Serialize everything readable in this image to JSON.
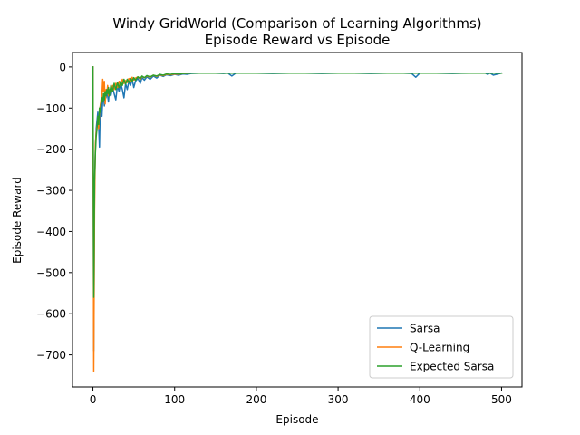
{
  "chart_data": {
    "type": "line",
    "title": "Windy GridWorld (Comparison of Learning Algorithms)",
    "subtitle": "Episode Reward vs Episode",
    "xlabel": "Episode",
    "ylabel": "Episode Reward",
    "xlim": [
      -25,
      525
    ],
    "ylim": [
      -778,
      35
    ],
    "xticks": [
      0,
      100,
      200,
      300,
      400,
      500
    ],
    "yticks": [
      0,
      -100,
      -200,
      -300,
      -400,
      -500,
      -600,
      -700
    ],
    "grid": false,
    "legend_position": "lower-right",
    "series": [
      {
        "name": "Sarsa",
        "color": "#1f77b4",
        "points": [
          [
            0,
            0
          ],
          [
            1,
            -690
          ],
          [
            2,
            -300
          ],
          [
            3,
            -200
          ],
          [
            4,
            -150
          ],
          [
            5,
            -130
          ],
          [
            6,
            -110
          ],
          [
            7,
            -140
          ],
          [
            8,
            -195
          ],
          [
            9,
            -95
          ],
          [
            10,
            -85
          ],
          [
            11,
            -120
          ],
          [
            12,
            -80
          ],
          [
            13,
            -70
          ],
          [
            14,
            -95
          ],
          [
            15,
            -65
          ],
          [
            16,
            -75
          ],
          [
            17,
            -60
          ],
          [
            18,
            -70
          ],
          [
            19,
            -85
          ],
          [
            20,
            -60
          ],
          [
            22,
            -70
          ],
          [
            24,
            -50
          ],
          [
            26,
            -65
          ],
          [
            28,
            -80
          ],
          [
            30,
            -45
          ],
          [
            32,
            -60
          ],
          [
            34,
            -40
          ],
          [
            36,
            -55
          ],
          [
            38,
            -75
          ],
          [
            40,
            -40
          ],
          [
            42,
            -55
          ],
          [
            44,
            -35
          ],
          [
            46,
            -45
          ],
          [
            48,
            -30
          ],
          [
            50,
            -50
          ],
          [
            52,
            -35
          ],
          [
            55,
            -28
          ],
          [
            58,
            -40
          ],
          [
            60,
            -26
          ],
          [
            63,
            -32
          ],
          [
            66,
            -24
          ],
          [
            70,
            -30
          ],
          [
            74,
            -22
          ],
          [
            78,
            -27
          ],
          [
            82,
            -20
          ],
          [
            86,
            -23
          ],
          [
            90,
            -19
          ],
          [
            95,
            -21
          ],
          [
            100,
            -18
          ],
          [
            105,
            -20
          ],
          [
            110,
            -17
          ],
          [
            115,
            -18
          ],
          [
            120,
            -16
          ],
          [
            130,
            -15
          ],
          [
            140,
            -15
          ],
          [
            150,
            -15
          ],
          [
            160,
            -16
          ],
          [
            165,
            -15
          ],
          [
            170,
            -22
          ],
          [
            175,
            -15
          ],
          [
            180,
            -15
          ],
          [
            200,
            -15
          ],
          [
            220,
            -16
          ],
          [
            240,
            -15
          ],
          [
            260,
            -15
          ],
          [
            280,
            -16
          ],
          [
            300,
            -15
          ],
          [
            320,
            -15
          ],
          [
            340,
            -16
          ],
          [
            360,
            -15
          ],
          [
            380,
            -15
          ],
          [
            390,
            -16
          ],
          [
            395,
            -25
          ],
          [
            400,
            -15
          ],
          [
            420,
            -15
          ],
          [
            440,
            -16
          ],
          [
            460,
            -15
          ],
          [
            480,
            -15
          ],
          [
            483,
            -18
          ],
          [
            486,
            -15
          ],
          [
            490,
            -20
          ],
          [
            500,
            -15
          ]
        ]
      },
      {
        "name": "Q-Learning",
        "color": "#ff7f0e",
        "points": [
          [
            0,
            0
          ],
          [
            1,
            -740
          ],
          [
            2,
            -350
          ],
          [
            3,
            -190
          ],
          [
            4,
            -160
          ],
          [
            5,
            -145
          ],
          [
            6,
            -130
          ],
          [
            7,
            -150
          ],
          [
            8,
            -110
          ],
          [
            9,
            -95
          ],
          [
            10,
            -80
          ],
          [
            11,
            -70
          ],
          [
            12,
            -30
          ],
          [
            13,
            -60
          ],
          [
            14,
            -35
          ],
          [
            15,
            -90
          ],
          [
            16,
            -55
          ],
          [
            17,
            -65
          ],
          [
            18,
            -45
          ],
          [
            19,
            -70
          ],
          [
            20,
            -55
          ],
          [
            22,
            -60
          ],
          [
            24,
            -45
          ],
          [
            26,
            -55
          ],
          [
            28,
            -40
          ],
          [
            30,
            -50
          ],
          [
            32,
            -35
          ],
          [
            34,
            -45
          ],
          [
            36,
            -30
          ],
          [
            38,
            -40
          ],
          [
            40,
            -33
          ],
          [
            42,
            -38
          ],
          [
            44,
            -28
          ],
          [
            46,
            -35
          ],
          [
            48,
            -25
          ],
          [
            50,
            -32
          ],
          [
            52,
            -27
          ],
          [
            55,
            -24
          ],
          [
            58,
            -30
          ],
          [
            60,
            -23
          ],
          [
            63,
            -26
          ],
          [
            66,
            -22
          ],
          [
            70,
            -25
          ],
          [
            74,
            -20
          ],
          [
            78,
            -23
          ],
          [
            82,
            -19
          ],
          [
            86,
            -21
          ],
          [
            90,
            -18
          ],
          [
            95,
            -19
          ],
          [
            100,
            -17
          ],
          [
            105,
            -18
          ],
          [
            110,
            -16
          ],
          [
            120,
            -15
          ],
          [
            130,
            -15
          ],
          [
            140,
            -15
          ],
          [
            160,
            -15
          ],
          [
            180,
            -15
          ],
          [
            200,
            -15
          ],
          [
            250,
            -15
          ],
          [
            300,
            -15
          ],
          [
            350,
            -15
          ],
          [
            400,
            -15
          ],
          [
            450,
            -15
          ],
          [
            500,
            -15
          ]
        ]
      },
      {
        "name": "Expected Sarsa",
        "color": "#2ca02c",
        "points": [
          [
            0,
            0
          ],
          [
            1,
            -560
          ],
          [
            2,
            -280
          ],
          [
            3,
            -210
          ],
          [
            4,
            -170
          ],
          [
            5,
            -150
          ],
          [
            6,
            -120
          ],
          [
            7,
            -140
          ],
          [
            8,
            -100
          ],
          [
            9,
            -110
          ],
          [
            10,
            -90
          ],
          [
            11,
            -75
          ],
          [
            12,
            -85
          ],
          [
            13,
            -65
          ],
          [
            14,
            -80
          ],
          [
            15,
            -60
          ],
          [
            16,
            -70
          ],
          [
            17,
            -55
          ],
          [
            18,
            -65
          ],
          [
            19,
            -50
          ],
          [
            20,
            -70
          ],
          [
            22,
            -45
          ],
          [
            24,
            -60
          ],
          [
            26,
            -40
          ],
          [
            28,
            -55
          ],
          [
            30,
            -38
          ],
          [
            32,
            -50
          ],
          [
            34,
            -35
          ],
          [
            36,
            -45
          ],
          [
            38,
            -30
          ],
          [
            40,
            -42
          ],
          [
            42,
            -30
          ],
          [
            44,
            -38
          ],
          [
            46,
            -28
          ],
          [
            48,
            -35
          ],
          [
            50,
            -26
          ],
          [
            52,
            -32
          ],
          [
            55,
            -24
          ],
          [
            58,
            -28
          ],
          [
            60,
            -22
          ],
          [
            63,
            -26
          ],
          [
            66,
            -21
          ],
          [
            70,
            -24
          ],
          [
            74,
            -20
          ],
          [
            78,
            -22
          ],
          [
            82,
            -18
          ],
          [
            86,
            -20
          ],
          [
            90,
            -17
          ],
          [
            95,
            -18
          ],
          [
            100,
            -16
          ],
          [
            105,
            -17
          ],
          [
            110,
            -16
          ],
          [
            120,
            -15
          ],
          [
            130,
            -15
          ],
          [
            140,
            -15
          ],
          [
            160,
            -15
          ],
          [
            180,
            -15
          ],
          [
            200,
            -15
          ],
          [
            250,
            -15
          ],
          [
            300,
            -15
          ],
          [
            350,
            -15
          ],
          [
            400,
            -15
          ],
          [
            450,
            -15
          ],
          [
            500,
            -15
          ]
        ]
      }
    ]
  }
}
